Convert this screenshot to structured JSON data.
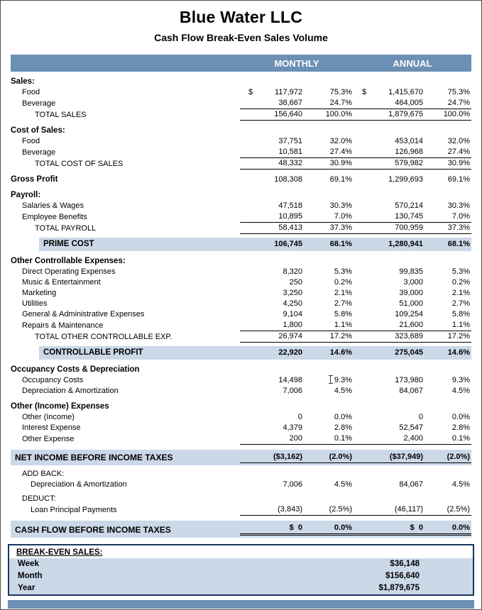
{
  "page": {
    "title": "Blue Water LLC",
    "subtitle": "Cash Flow Break-Even Sales Volume"
  },
  "colors": {
    "header_bar": "#6C8FB4",
    "highlight": "#CBD8E8",
    "footer_bar": "#6C8FB4",
    "box_border": "#17375E"
  },
  "columns": {
    "monthly": "MONTHLY",
    "annual": "ANNUAL"
  },
  "rows": [
    {
      "type": "section",
      "label": "Sales:"
    },
    {
      "type": "item",
      "label": "Food",
      "values": [
        "$ 117,972",
        "75.3%",
        "$ 1,415,670",
        "75.3%"
      ]
    },
    {
      "type": "item",
      "label": "Beverage",
      "values": [
        "38,667",
        "24.7%",
        "464,005",
        "24.7%"
      ],
      "ul": true
    },
    {
      "type": "total",
      "label": "TOTAL SALES",
      "values": [
        "156,640",
        "100.0%",
        "1,879,675",
        "100.0%"
      ],
      "ul": true
    },
    {
      "type": "section",
      "label": "Cost of Sales:"
    },
    {
      "type": "item",
      "label": "Food",
      "values": [
        "37,751",
        "32.0%",
        "453,014",
        "32.0%"
      ]
    },
    {
      "type": "item",
      "label": "Beverage",
      "values": [
        "10,581",
        "27.4%",
        "126,968",
        "27.4%"
      ],
      "ul": true
    },
    {
      "type": "total",
      "label": "TOTAL COST OF SALES",
      "values": [
        "48,332",
        "30.9%",
        "579,982",
        "30.9%"
      ],
      "ul": true
    },
    {
      "type": "bold",
      "label": "Gross Profit",
      "values": [
        "108,308",
        "69.1%",
        "1,299,693",
        "69.1%"
      ]
    },
    {
      "type": "section",
      "label": "Payroll:"
    },
    {
      "type": "item",
      "label": "Salaries & Wages",
      "values": [
        "47,518",
        "30.3%",
        "570,214",
        "30.3%"
      ]
    },
    {
      "type": "item",
      "label": "Employee Benefits",
      "values": [
        "10,895",
        "7.0%",
        "130,745",
        "7.0%"
      ],
      "ul": true
    },
    {
      "type": "total",
      "label": "TOTAL PAYROLL",
      "values": [
        "58,413",
        "37.3%",
        "700,959",
        "37.3%"
      ],
      "ul": true
    },
    {
      "type": "hl",
      "label": "PRIME COST",
      "values": [
        "106,745",
        "68.1%",
        "1,280,941",
        "68.1%"
      ]
    },
    {
      "type": "section",
      "label": "Other Controllable Expenses:"
    },
    {
      "type": "item",
      "label": "Direct Operating Expenses",
      "values": [
        "8,320",
        "5.3%",
        "99,835",
        "5.3%"
      ]
    },
    {
      "type": "item",
      "label": "Music & Entertainment",
      "values": [
        "250",
        "0.2%",
        "3,000",
        "0.2%"
      ]
    },
    {
      "type": "item",
      "label": "Marketing",
      "values": [
        "3,250",
        "2.1%",
        "39,000",
        "2.1%"
      ]
    },
    {
      "type": "item",
      "label": "Utilities",
      "values": [
        "4,250",
        "2.7%",
        "51,000",
        "2.7%"
      ]
    },
    {
      "type": "item",
      "label": "General & Administrative Expenses",
      "values": [
        "9,104",
        "5.8%",
        "109,254",
        "5.8%"
      ]
    },
    {
      "type": "item",
      "label": "Repairs & Maintenance",
      "values": [
        "1,800",
        "1.1%",
        "21,600",
        "1.1%"
      ],
      "ul": true
    },
    {
      "type": "total",
      "label": "TOTAL OTHER CONTROLLABLE EXP.",
      "values": [
        "26,974",
        "17.2%",
        "323,689",
        "17.2%"
      ],
      "ul": true
    },
    {
      "type": "hl",
      "label": "CONTROLLABLE PROFIT",
      "values": [
        "22,920",
        "14.6%",
        "275,045",
        "14.6%"
      ]
    },
    {
      "type": "section",
      "label": "Occupancy Costs & Depreciation"
    },
    {
      "type": "item",
      "label": "Occupancy Costs",
      "values": [
        "14,498",
        "9.3%",
        "173,980",
        "9.3%"
      ],
      "cursor": true
    },
    {
      "type": "item",
      "label": "Depreciation & Amortization",
      "values": [
        "7,006",
        "4.5%",
        "84,067",
        "4.5%"
      ]
    },
    {
      "type": "section",
      "label": "Other (Income) Expenses"
    },
    {
      "type": "item",
      "label": "Other (Income)",
      "values": [
        "0",
        "0.0%",
        "0",
        "0.0%"
      ]
    },
    {
      "type": "item",
      "label": "Interest Expense",
      "values": [
        "4,379",
        "2.8%",
        "52,547",
        "2.8%"
      ]
    },
    {
      "type": "item",
      "label": "Other Expense",
      "values": [
        "200",
        "0.1%",
        "2,400",
        "0.1%"
      ],
      "ul": true
    },
    {
      "type": "band",
      "label": "NET INCOME BEFORE INCOME TAXES",
      "values": [
        "($3,162)",
        "(2.0%)",
        "($37,949)",
        "(2.0%)"
      ],
      "ul": true
    },
    {
      "type": "sub",
      "label": "ADD BACK:"
    },
    {
      "type": "item2",
      "label": "Depreciation & Amortization",
      "values": [
        "7,006",
        "4.5%",
        "84,067",
        "4.5%"
      ]
    },
    {
      "type": "sub",
      "label": "DEDUCT:"
    },
    {
      "type": "item2",
      "label": "Loan Principal Payments",
      "values": [
        "(3,843)",
        "(2.5%)",
        "(46,117)",
        "(2.5%)"
      ],
      "ul": true
    },
    {
      "type": "band",
      "label": "CASH FLOW BEFORE INCOME TAXES",
      "values": [
        "$  0",
        "0.0%",
        "$  0",
        "0.0%"
      ],
      "dul": true
    }
  ],
  "breakeven": {
    "title": "BREAK-EVEN SALES:",
    "rows": [
      {
        "label": "Week",
        "value": "$36,148"
      },
      {
        "label": "Month",
        "value": "$156,640"
      },
      {
        "label": "Year",
        "value": "$1,879,675"
      }
    ]
  }
}
